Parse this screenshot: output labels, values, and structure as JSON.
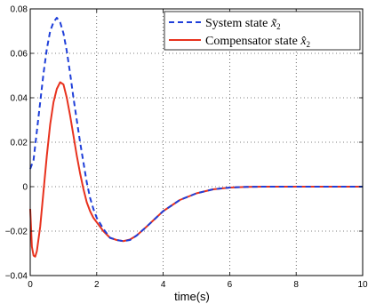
{
  "chart_data": {
    "type": "line",
    "title": "",
    "xlabel": "time(s)",
    "ylabel": "",
    "xlim": [
      0,
      10
    ],
    "ylim": [
      -0.04,
      0.08
    ],
    "xticks": [
      0,
      2,
      4,
      6,
      8,
      10
    ],
    "yticks": [
      -0.04,
      -0.02,
      0,
      0.02,
      0.04,
      0.06,
      0.08
    ],
    "xtick_labels": [
      "0",
      "2",
      "4",
      "6",
      "8",
      "10"
    ],
    "ytick_labels": [
      "−0.04",
      "−0.02",
      "0",
      "0.02",
      "0.04",
      "0.06",
      "0.08"
    ],
    "grid": true,
    "legend_position": "top-right",
    "series": [
      {
        "name": "System state",
        "symbol": "x̃",
        "subscript": "2",
        "color": "#1f3fd9",
        "style": "dashed",
        "x": [
          0,
          0.1,
          0.2,
          0.3,
          0.4,
          0.5,
          0.6,
          0.7,
          0.8,
          0.9,
          1.0,
          1.1,
          1.2,
          1.3,
          1.4,
          1.5,
          1.6,
          1.7,
          1.8,
          1.9,
          2.0,
          2.2,
          2.4,
          2.6,
          2.8,
          3.0,
          3.2,
          3.5,
          4.0,
          4.5,
          5.0,
          5.5,
          6.0,
          6.5,
          7.0,
          8.0,
          9.0,
          10.0
        ],
        "values": [
          0.008,
          0.012,
          0.025,
          0.038,
          0.051,
          0.062,
          0.07,
          0.074,
          0.076,
          0.074,
          0.069,
          0.061,
          0.051,
          0.04,
          0.03,
          0.02,
          0.011,
          0.002,
          -0.005,
          -0.01,
          -0.014,
          -0.019,
          -0.023,
          -0.024,
          -0.0245,
          -0.024,
          -0.022,
          -0.018,
          -0.011,
          -0.006,
          -0.003,
          -0.0012,
          -0.0004,
          -0.0001,
          0,
          0,
          0,
          0
        ]
      },
      {
        "name": "Compensator state",
        "symbol": "x̂",
        "subscript": "2",
        "color": "#e8321e",
        "style": "solid",
        "x": [
          0,
          0.05,
          0.1,
          0.15,
          0.2,
          0.3,
          0.4,
          0.5,
          0.6,
          0.7,
          0.8,
          0.9,
          1.0,
          1.1,
          1.2,
          1.3,
          1.4,
          1.5,
          1.6,
          1.7,
          1.8,
          1.9,
          2.0,
          2.2,
          2.4,
          2.6,
          2.8,
          3.0,
          3.2,
          3.5,
          4.0,
          4.5,
          5.0,
          5.5,
          6.0,
          6.5,
          7.0,
          8.0,
          9.0,
          10.0
        ],
        "values": [
          -0.01,
          -0.027,
          -0.031,
          -0.0315,
          -0.029,
          -0.018,
          -0.002,
          0.014,
          0.028,
          0.038,
          0.044,
          0.047,
          0.046,
          0.04,
          0.032,
          0.023,
          0.014,
          0.006,
          -0.001,
          -0.007,
          -0.011,
          -0.014,
          -0.016,
          -0.02,
          -0.023,
          -0.024,
          -0.0245,
          -0.0238,
          -0.022,
          -0.018,
          -0.011,
          -0.006,
          -0.003,
          -0.0012,
          -0.0004,
          -0.0001,
          0,
          0,
          0,
          0
        ]
      }
    ]
  }
}
